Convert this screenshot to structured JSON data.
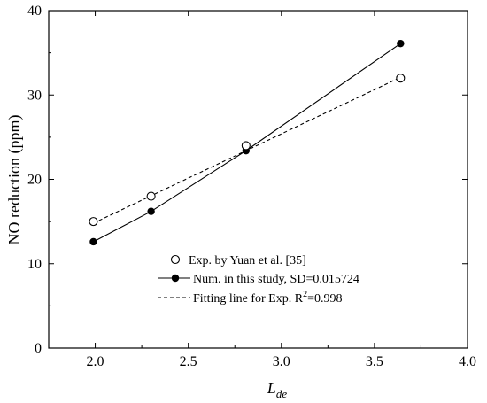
{
  "chart_data": {
    "type": "line",
    "xlabel": "L",
    "xlabel_sub": "de",
    "ylabel": "NO reduction (ppm)",
    "xlim": [
      1.75,
      4.0
    ],
    "ylim": [
      0,
      40
    ],
    "x_ticks": [
      "2.0",
      "2.5",
      "3.0",
      "3.5",
      "4.0"
    ],
    "y_ticks": [
      "0",
      "10",
      "20",
      "30",
      "40"
    ],
    "grid": false,
    "legend_position": "lower-right",
    "series": [
      {
        "name": "Exp. by Yuan et al. [35]",
        "style": "open-circle",
        "x": [
          1.99,
          2.3,
          2.81,
          3.64
        ],
        "y": [
          15.0,
          18.0,
          24.0,
          32.0
        ]
      },
      {
        "name": "Num. in this study, SD=0.015724",
        "style": "filled-circle-solid-line",
        "x": [
          1.99,
          2.3,
          2.81,
          3.64
        ],
        "y": [
          12.6,
          16.2,
          23.4,
          36.1
        ]
      },
      {
        "name": "Fitting line for Exp. R",
        "name_sup": "2",
        "name_suffix": "=0.998",
        "style": "dashed-line",
        "x": [
          1.99,
          3.64
        ],
        "y": [
          14.8,
          32.1
        ]
      }
    ]
  }
}
